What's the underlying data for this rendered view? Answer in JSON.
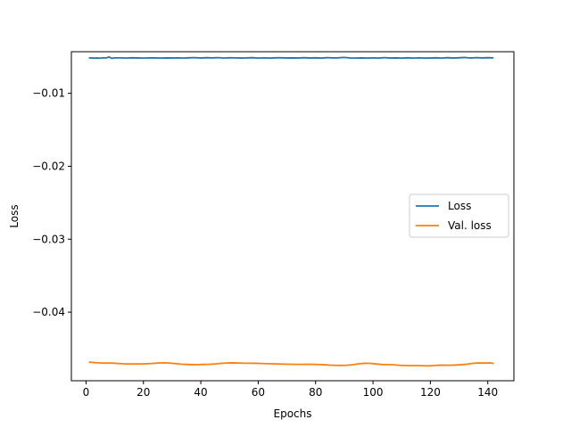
{
  "chart_data": {
    "type": "line",
    "title": "",
    "xlabel": "Epochs",
    "ylabel": "Loss",
    "xlim": [
      -5.1,
      149.1
    ],
    "ylim": [
      -0.0494,
      -0.0043
    ],
    "xticks": [
      0,
      20,
      40,
      60,
      80,
      100,
      120,
      140
    ],
    "yticks": [
      -0.01,
      -0.02,
      -0.03,
      -0.04
    ],
    "xtick_labels": [
      "0",
      "20",
      "40",
      "60",
      "80",
      "100",
      "120",
      "140"
    ],
    "ytick_labels": [
      "−0.01",
      "−0.02",
      "−0.03",
      "−0.04"
    ],
    "grid": false,
    "legend_position": "center-right",
    "series": [
      {
        "name": "Loss",
        "color": "#1f77b4",
        "x": [
          1,
          2,
          3,
          4,
          5,
          6,
          7,
          8,
          9,
          10,
          12,
          14,
          16,
          18,
          20,
          22,
          24,
          26,
          28,
          30,
          32,
          34,
          36,
          38,
          40,
          42,
          44,
          46,
          48,
          50,
          52,
          54,
          56,
          58,
          60,
          62,
          64,
          66,
          68,
          70,
          72,
          74,
          76,
          78,
          80,
          82,
          84,
          86,
          88,
          90,
          92,
          94,
          96,
          98,
          100,
          102,
          104,
          106,
          108,
          110,
          112,
          114,
          116,
          118,
          120,
          122,
          124,
          126,
          128,
          130,
          132,
          134,
          136,
          138,
          140,
          142
        ],
        "y": [
          -0.00514,
          -0.00516,
          -0.00518,
          -0.00516,
          -0.00519,
          -0.00512,
          -0.00516,
          -0.00502,
          -0.00521,
          -0.00514,
          -0.00514,
          -0.00517,
          -0.00513,
          -0.00515,
          -0.00517,
          -0.00514,
          -0.00515,
          -0.00517,
          -0.00515,
          -0.00516,
          -0.00514,
          -0.00517,
          -0.00513,
          -0.00511,
          -0.00516,
          -0.00512,
          -0.00515,
          -0.00511,
          -0.00517,
          -0.00513,
          -0.00514,
          -0.00516,
          -0.00515,
          -0.00512,
          -0.00517,
          -0.00514,
          -0.00518,
          -0.00513,
          -0.00513,
          -0.00516,
          -0.00515,
          -0.00516,
          -0.00512,
          -0.00516,
          -0.00513,
          -0.00518,
          -0.00511,
          -0.00515,
          -0.00513,
          -0.00508,
          -0.00516,
          -0.00517,
          -0.00515,
          -0.00518,
          -0.00514,
          -0.00518,
          -0.00511,
          -0.00516,
          -0.00515,
          -0.00518,
          -0.00513,
          -0.00517,
          -0.00514,
          -0.00518,
          -0.00516,
          -0.00513,
          -0.00517,
          -0.00512,
          -0.00516,
          -0.00513,
          -0.00509,
          -0.00516,
          -0.00511,
          -0.00515,
          -0.00512,
          -0.00514
        ]
      },
      {
        "name": "Val. loss",
        "color": "#ff7f0e",
        "x": [
          1,
          3,
          5,
          7,
          9,
          11,
          13,
          15,
          17,
          19,
          21,
          23,
          25,
          27,
          29,
          31,
          33,
          35,
          37,
          39,
          41,
          43,
          45,
          47,
          49,
          51,
          53,
          55,
          57,
          59,
          61,
          63,
          65,
          67,
          69,
          71,
          73,
          75,
          77,
          79,
          81,
          83,
          85,
          87,
          89,
          91,
          93,
          95,
          97,
          99,
          101,
          103,
          105,
          107,
          109,
          111,
          113,
          115,
          117,
          119,
          121,
          123,
          125,
          127,
          129,
          131,
          133,
          135,
          137,
          139,
          141,
          142
        ],
        "y": [
          -0.04684,
          -0.04691,
          -0.04697,
          -0.04698,
          -0.04698,
          -0.04703,
          -0.04708,
          -0.0471,
          -0.0471,
          -0.04709,
          -0.04707,
          -0.04703,
          -0.04697,
          -0.04694,
          -0.04697,
          -0.04705,
          -0.04712,
          -0.04716,
          -0.04719,
          -0.04718,
          -0.04716,
          -0.04714,
          -0.04709,
          -0.04702,
          -0.04697,
          -0.04695,
          -0.04697,
          -0.047,
          -0.047,
          -0.04701,
          -0.04703,
          -0.04706,
          -0.04708,
          -0.0471,
          -0.04712,
          -0.04714,
          -0.04715,
          -0.04715,
          -0.04714,
          -0.04715,
          -0.04717,
          -0.04721,
          -0.04726,
          -0.04729,
          -0.0473,
          -0.04728,
          -0.0472,
          -0.04708,
          -0.047,
          -0.04702,
          -0.0471,
          -0.04717,
          -0.04718,
          -0.04722,
          -0.04728,
          -0.04731,
          -0.04732,
          -0.04732,
          -0.04734,
          -0.04737,
          -0.04732,
          -0.04726,
          -0.04727,
          -0.04728,
          -0.04724,
          -0.04719,
          -0.04712,
          -0.047,
          -0.04696,
          -0.04698,
          -0.04696,
          -0.04705
        ]
      }
    ]
  }
}
